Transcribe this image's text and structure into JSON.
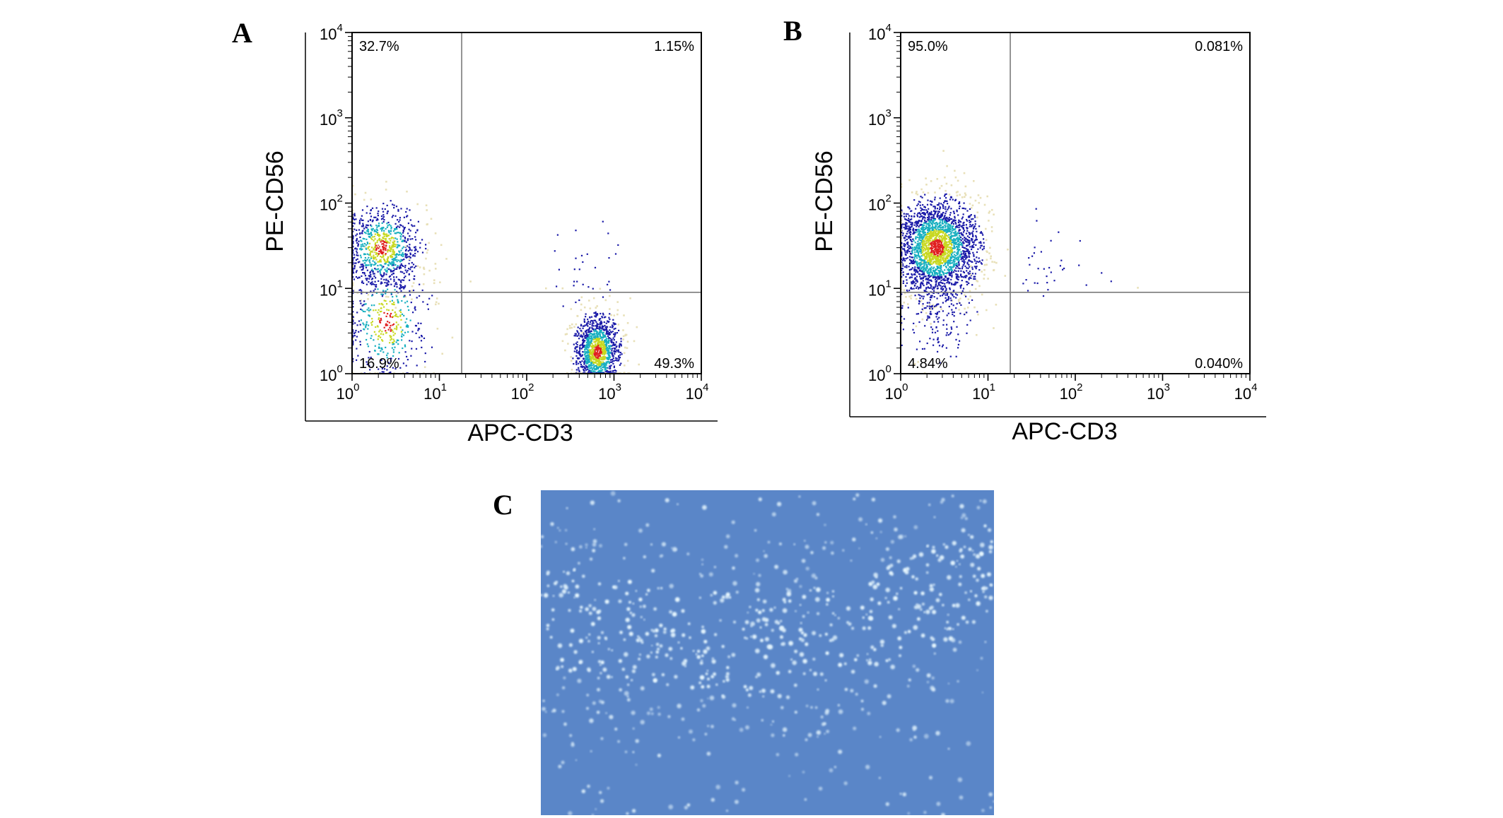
{
  "panels": {
    "A": {
      "label": "A"
    },
    "B": {
      "label": "B"
    },
    "C": {
      "label": "C"
    }
  },
  "colors": {
    "density_low": "#e8e0b8",
    "density_mid_low": "#1a1aa8",
    "density_mid": "#19b0c0",
    "density_high": "#c8d820",
    "density_peak": "#e02020",
    "micrograph_bg": "#5a86c8",
    "micrograph_cells": "#e8f8ff"
  },
  "chart_data": [
    {
      "id": "A",
      "type": "scatter",
      "title": "",
      "xlabel": "APC-CD3",
      "ylabel": "PE-CD56",
      "x_scale": "log",
      "y_scale": "log",
      "xlim": [
        1,
        10000
      ],
      "ylim": [
        1,
        10000
      ],
      "x_ticks": [
        {
          "base": "10",
          "exp": "0"
        },
        {
          "base": "10",
          "exp": "1"
        },
        {
          "base": "10",
          "exp": "2"
        },
        {
          "base": "10",
          "exp": "3"
        },
        {
          "base": "10",
          "exp": "4"
        }
      ],
      "y_ticks": [
        {
          "base": "10",
          "exp": "0"
        },
        {
          "base": "10",
          "exp": "1"
        },
        {
          "base": "10",
          "exp": "2"
        },
        {
          "base": "10",
          "exp": "3"
        },
        {
          "base": "10",
          "exp": "4"
        }
      ],
      "gate": {
        "x": 18,
        "y": 9
      },
      "quadrants": {
        "upper_left": "32.7%",
        "upper_right": "1.15%",
        "lower_left": "16.9%",
        "lower_right": "49.3%"
      },
      "populations": [
        {
          "x_center": 2.2,
          "y_center": 30,
          "x_spread_decades": 0.22,
          "y_spread_decades": 0.25,
          "weight": 0.33
        },
        {
          "x_center": 2.5,
          "y_center": 4,
          "x_spread_decades": 0.25,
          "y_spread_decades": 0.35,
          "weight": 0.17
        },
        {
          "x_center": 650,
          "y_center": 1.8,
          "x_spread_decades": 0.13,
          "y_spread_decades": 0.22,
          "weight": 0.49
        },
        {
          "x_center": 500,
          "y_center": 15,
          "x_spread_decades": 0.2,
          "y_spread_decades": 0.3,
          "weight": 0.01
        }
      ]
    },
    {
      "id": "B",
      "type": "scatter",
      "title": "",
      "xlabel": "APC-CD3",
      "ylabel": "PE-CD56",
      "x_scale": "log",
      "y_scale": "log",
      "xlim": [
        1,
        10000
      ],
      "ylim": [
        1,
        10000
      ],
      "x_ticks": [
        {
          "base": "10",
          "exp": "0"
        },
        {
          "base": "10",
          "exp": "1"
        },
        {
          "base": "10",
          "exp": "2"
        },
        {
          "base": "10",
          "exp": "3"
        },
        {
          "base": "10",
          "exp": "4"
        }
      ],
      "y_ticks": [
        {
          "base": "10",
          "exp": "0"
        },
        {
          "base": "10",
          "exp": "1"
        },
        {
          "base": "10",
          "exp": "2"
        },
        {
          "base": "10",
          "exp": "3"
        },
        {
          "base": "10",
          "exp": "4"
        }
      ],
      "gate": {
        "x": 18,
        "y": 9
      },
      "quadrants": {
        "upper_left": "95.0%",
        "upper_right": "0.081%",
        "lower_left": "4.84%",
        "lower_right": "0.040%"
      },
      "populations": [
        {
          "x_center": 2.6,
          "y_center": 30,
          "x_spread_decades": 0.24,
          "y_spread_decades": 0.28,
          "weight": 0.92
        },
        {
          "x_center": 2.5,
          "y_center": 5,
          "x_spread_decades": 0.22,
          "y_spread_decades": 0.25,
          "weight": 0.07
        },
        {
          "x_center": 60,
          "y_center": 20,
          "x_spread_decades": 0.3,
          "y_spread_decades": 0.3,
          "weight": 0.01
        }
      ]
    }
  ]
}
